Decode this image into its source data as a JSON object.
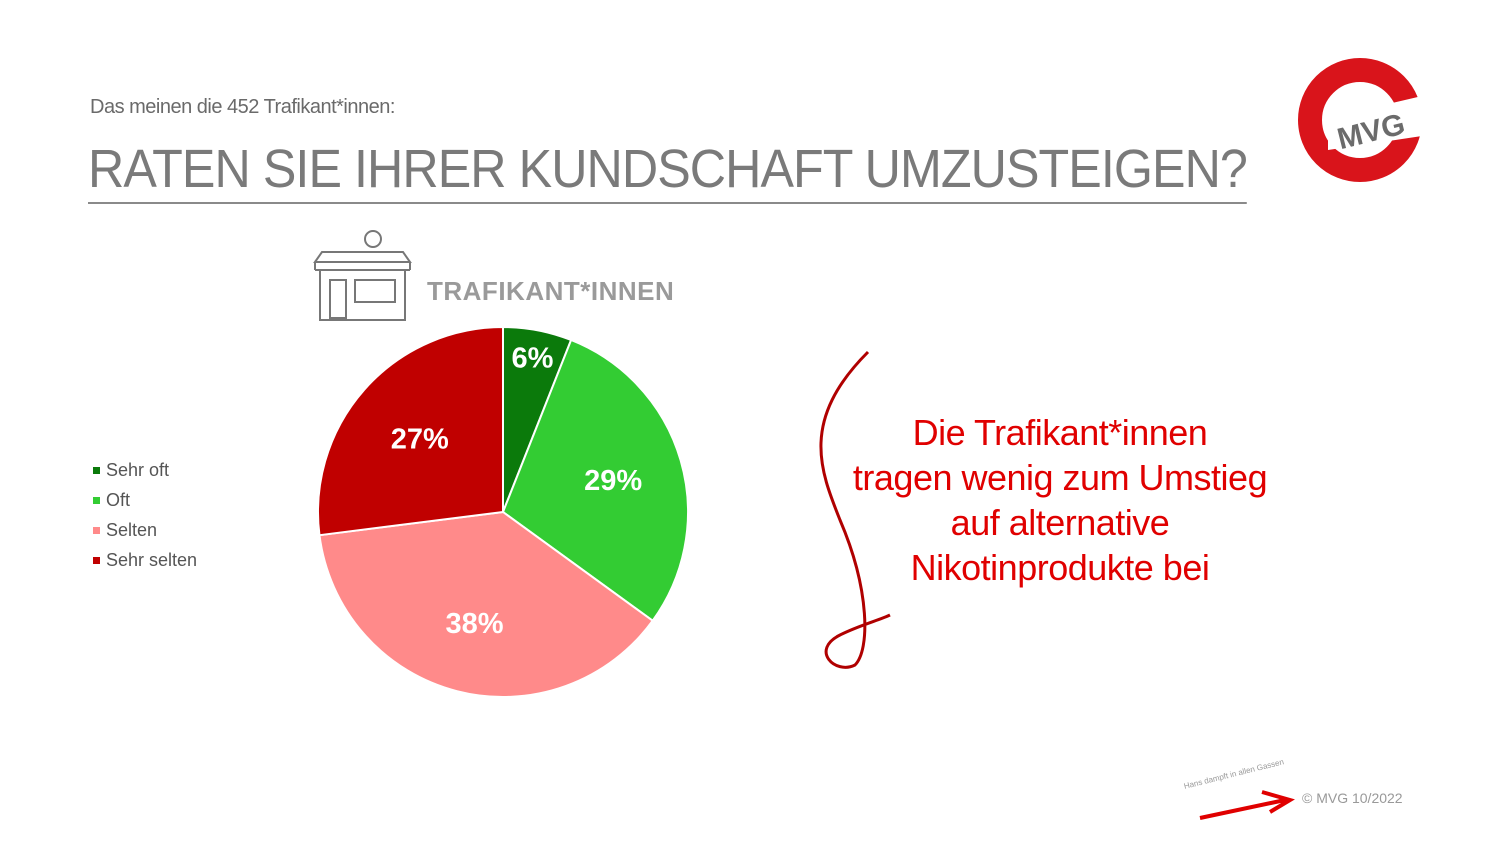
{
  "header": {
    "subtitle": "Das meinen die 452 Trafikant*innen:",
    "title": "RATEN SIE IHRER KUNDSCHAFT UMZUSTEIGEN?"
  },
  "logo": {
    "text": "MVG",
    "color": "#d9141b"
  },
  "chart_data": {
    "type": "pie",
    "title": "TRAFIKANT*INNEN",
    "categories": [
      "Sehr oft",
      "Oft",
      "Selten",
      "Sehr selten"
    ],
    "values": [
      6,
      29,
      38,
      27
    ],
    "labels": [
      "6%",
      "29%",
      "38%",
      "27%"
    ],
    "colors": [
      "#0b7a0b",
      "#33cc33",
      "#ff8a8a",
      "#c00000"
    ],
    "legend_position": "left"
  },
  "callout": {
    "lines": [
      "Die Trafikant*innen",
      "tragen wenig zum Umstieg",
      "auf alternative",
      "Nikotinprodukte bei"
    ]
  },
  "footer": {
    "handwriting": "Hans dampft in allen Gassen",
    "credit": "© MVG 10/2022"
  }
}
